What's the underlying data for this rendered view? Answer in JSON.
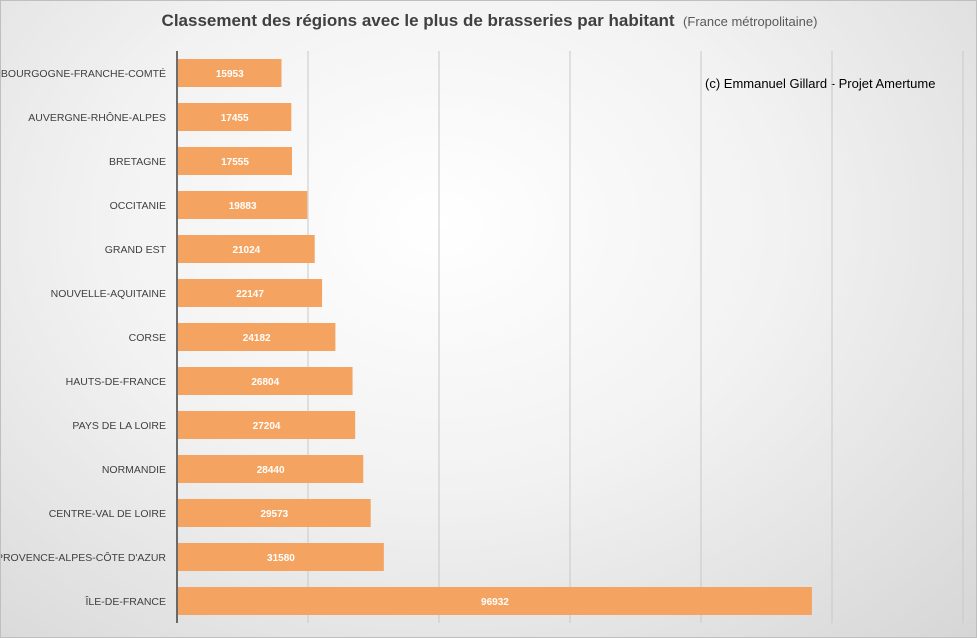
{
  "chart_data": {
    "type": "bar",
    "orientation": "horizontal",
    "title": "Classement des régions avec le plus de brasseries par habitant",
    "subtitle": "(France métropolitaine)",
    "watermark": "(c) Emmanuel Gillard - Projet Amertume",
    "categories": [
      "BOURGOGNE-FRANCHE-COMTÉ",
      "AUVERGNE-RHÔNE-ALPES",
      "BRETAGNE",
      "OCCITANIE",
      "GRAND EST",
      "NOUVELLE-AQUITAINE",
      "CORSE",
      "HAUTS-DE-FRANCE",
      "PAYS DE LA LOIRE",
      "NORMANDIE",
      "CENTRE-VAL DE LOIRE",
      "PROVENCE-ALPES-CÔTE D'AZUR",
      "ÎLE-DE-FRANCE"
    ],
    "values": [
      15953,
      17455,
      17555,
      19883,
      21024,
      22147,
      24182,
      26804,
      27204,
      28440,
      29573,
      31580,
      96932
    ],
    "xlim": [
      0,
      120000
    ],
    "x_gridlines": [
      20000,
      40000,
      60000,
      80000,
      100000,
      120000
    ],
    "grid": true,
    "data_labels": "inside-center",
    "bar_color": "#f4a460"
  }
}
